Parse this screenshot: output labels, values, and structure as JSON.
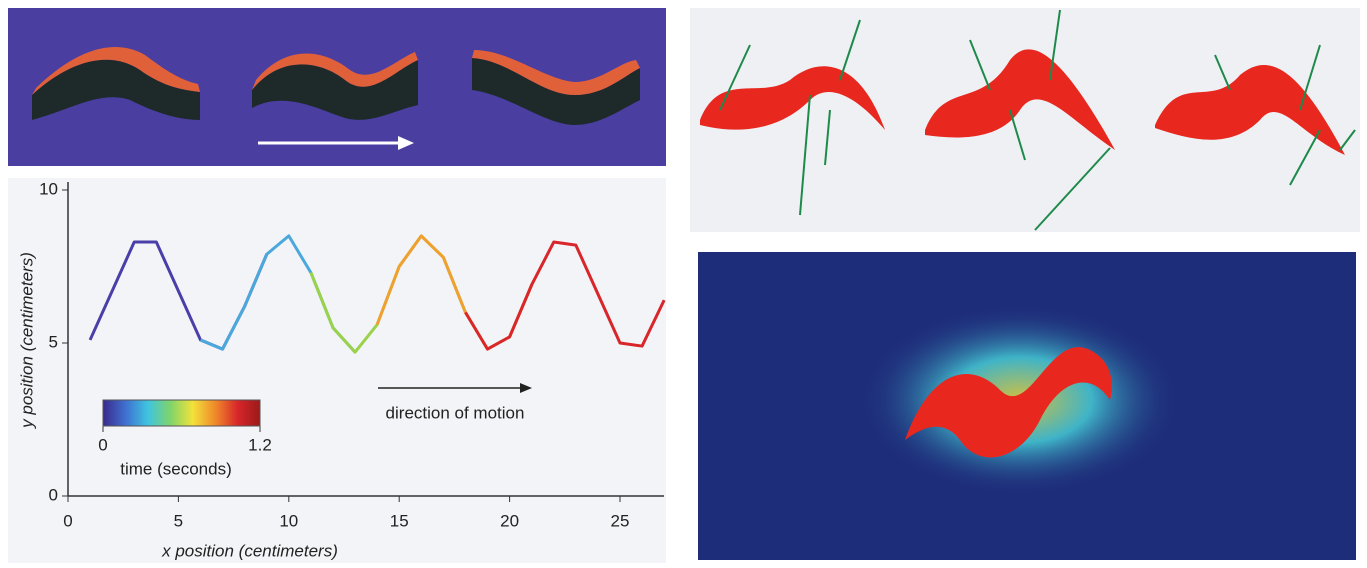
{
  "chart_data": {
    "type": "line",
    "xlabel": "x position (centimeters)",
    "ylabel": "y position (centimeters)",
    "annotation": "direction of motion",
    "colorbar": {
      "label": "time (seconds)",
      "ticks": [
        0,
        1.2
      ],
      "colors": [
        "#3a2a8c",
        "#3f6fd0",
        "#3fc4e0",
        "#7fd46a",
        "#f2e23a",
        "#f08a2a",
        "#d8262a",
        "#9a1a1a"
      ]
    },
    "xlim": [
      0,
      27
    ],
    "xticks": [
      0,
      5,
      10,
      15,
      20,
      25
    ],
    "ylim": [
      0,
      10
    ],
    "yticks": [
      0,
      5,
      10
    ],
    "x": [
      0,
      1,
      2,
      3,
      4,
      5,
      6,
      7,
      8,
      9,
      10,
      11,
      12,
      13,
      14,
      15,
      16,
      17,
      18,
      19,
      20,
      21,
      22,
      23,
      24,
      25,
      26,
      27
    ],
    "series": [
      {
        "color": "#4a3fa8",
        "values": [
          null,
          5.1,
          6.7,
          8.3,
          8.3,
          6.7,
          5.1,
          4.8,
          6.2,
          7.9,
          null,
          null,
          null,
          null,
          null,
          null,
          null,
          null,
          null,
          null,
          null,
          null,
          null,
          null,
          null,
          null,
          null,
          null
        ]
      },
      {
        "color": "#4aa8dc",
        "values": [
          null,
          null,
          null,
          null,
          null,
          null,
          5.1,
          4.8,
          6.2,
          7.9,
          8.5,
          7.3,
          5.5,
          4.7,
          null,
          null,
          null,
          null,
          null,
          null,
          null,
          null,
          null,
          null,
          null,
          null,
          null,
          null
        ]
      },
      {
        "color": "#9ad24a",
        "values": [
          null,
          null,
          null,
          null,
          null,
          null,
          null,
          null,
          null,
          null,
          null,
          7.3,
          5.5,
          4.7,
          5.6,
          7.5,
          8.5,
          7.8,
          6.0,
          null,
          null,
          null,
          null,
          null,
          null,
          null,
          null,
          null
        ]
      },
      {
        "color": "#f0a030",
        "values": [
          null,
          null,
          null,
          null,
          null,
          null,
          null,
          null,
          null,
          null,
          null,
          null,
          null,
          null,
          5.6,
          7.5,
          8.5,
          7.8,
          6.0,
          4.8,
          5.2,
          6.9,
          null,
          null,
          null,
          null,
          null,
          null
        ]
      },
      {
        "color": "#d8262a",
        "values": [
          null,
          null,
          null,
          null,
          null,
          null,
          null,
          null,
          null,
          null,
          null,
          null,
          null,
          null,
          null,
          null,
          null,
          null,
          6.0,
          4.8,
          5.2,
          6.9,
          8.3,
          8.2,
          6.6,
          5.0,
          4.9,
          6.4
        ]
      }
    ]
  }
}
